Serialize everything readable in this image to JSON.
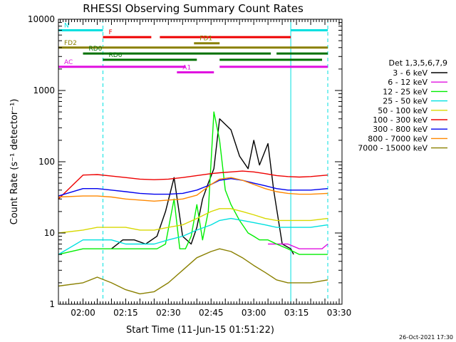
{
  "chart_data": {
    "type": "line",
    "title": "RHESSI Observing Summary Count Rates",
    "xlabel": "Start Time (11-Jun-15 01:51:22)",
    "ylabel": "Count Rate (s⁻¹ detector⁻¹)",
    "xlim": [
      "01:51:22",
      "03:31:00"
    ],
    "ylim": [
      1,
      10000
    ],
    "yscale": "log",
    "xticks": [
      "02:00",
      "02:15",
      "02:30",
      "02:45",
      "03:00",
      "03:15",
      "03:30"
    ],
    "yticks": [
      {
        "value": 1,
        "label": "1"
      },
      {
        "value": 10,
        "label": "10"
      },
      {
        "value": 100,
        "label": "100"
      },
      {
        "value": 1000,
        "label": "1000"
      },
      {
        "value": 10000,
        "label": "10000"
      }
    ],
    "legend_title": "Det 1,3,5,6,7,9",
    "legend_position": "right",
    "series": [
      {
        "name": "3 - 6 keV",
        "color": "#000000",
        "points": [
          [
            "01:51:22",
            0
          ],
          [
            "02:00",
            0
          ],
          [
            "02:05",
            0
          ],
          [
            "02:10",
            6
          ],
          [
            "02:14",
            8
          ],
          [
            "02:18",
            8
          ],
          [
            "02:22",
            7
          ],
          [
            "02:26",
            9
          ],
          [
            "02:29",
            20
          ],
          [
            "02:32",
            60
          ],
          [
            "02:35",
            9
          ],
          [
            "02:38",
            7
          ],
          [
            "02:40",
            12
          ],
          [
            "02:42",
            30
          ],
          [
            "02:44",
            50
          ],
          [
            "02:46",
            80
          ],
          [
            "02:48",
            400
          ],
          [
            "02:52",
            280
          ],
          [
            "02:55",
            120
          ],
          [
            "02:58",
            80
          ],
          [
            "03:00",
            200
          ],
          [
            "03:02",
            90
          ],
          [
            "03:05",
            180
          ],
          [
            "03:07",
            40
          ],
          [
            "03:10",
            7
          ],
          [
            "03:13",
            6
          ],
          [
            "03:14",
            5
          ],
          [
            "03:16",
            0
          ],
          [
            "03:26",
            0
          ]
        ]
      },
      {
        "name": "6 - 12 keV",
        "color": "#e010e0",
        "points": [
          [
            "03:05",
            7
          ],
          [
            "03:08",
            7
          ],
          [
            "03:12",
            7
          ],
          [
            "03:16",
            6
          ],
          [
            "03:20",
            6
          ],
          [
            "03:24",
            6
          ],
          [
            "03:26",
            7
          ]
        ]
      },
      {
        "name": "12 - 25 keV",
        "color": "#00ee00",
        "points": [
          [
            "01:51:22",
            5
          ],
          [
            "02:00",
            6
          ],
          [
            "02:05",
            6
          ],
          [
            "02:10",
            6
          ],
          [
            "02:14",
            6
          ],
          [
            "02:18",
            6
          ],
          [
            "02:22",
            6
          ],
          [
            "02:26",
            6
          ],
          [
            "02:29",
            7
          ],
          [
            "02:32",
            30
          ],
          [
            "02:34",
            6
          ],
          [
            "02:36",
            6
          ],
          [
            "02:38",
            9
          ],
          [
            "02:40",
            25
          ],
          [
            "02:42",
            8
          ],
          [
            "02:44",
            20
          ],
          [
            "02:46",
            500
          ],
          [
            "02:48",
            200
          ],
          [
            "02:50",
            40
          ],
          [
            "02:52",
            25
          ],
          [
            "02:55",
            15
          ],
          [
            "02:58",
            10
          ],
          [
            "03:00",
            9
          ],
          [
            "03:02",
            8
          ],
          [
            "03:05",
            8
          ],
          [
            "03:08",
            7
          ],
          [
            "03:12",
            6
          ],
          [
            "03:16",
            5
          ],
          [
            "03:20",
            5
          ],
          [
            "03:26",
            5
          ]
        ]
      },
      {
        "name": "25 - 50 keV",
        "color": "#00e0e0",
        "points": [
          [
            "01:51:22",
            5
          ],
          [
            "02:00",
            8
          ],
          [
            "02:05",
            8
          ],
          [
            "02:10",
            8
          ],
          [
            "02:15",
            7
          ],
          [
            "02:20",
            7
          ],
          [
            "02:25",
            7
          ],
          [
            "02:30",
            8
          ],
          [
            "02:35",
            9
          ],
          [
            "02:40",
            11
          ],
          [
            "02:45",
            13
          ],
          [
            "02:48",
            15
          ],
          [
            "02:52",
            16
          ],
          [
            "02:56",
            15
          ],
          [
            "03:00",
            14
          ],
          [
            "03:04",
            13
          ],
          [
            "03:08",
            12
          ],
          [
            "03:12",
            12
          ],
          [
            "03:16",
            12
          ],
          [
            "03:20",
            12
          ],
          [
            "03:26",
            13
          ]
        ]
      },
      {
        "name": "50 - 100 keV",
        "color": "#d8d800",
        "points": [
          [
            "01:51:22",
            10
          ],
          [
            "02:00",
            11
          ],
          [
            "02:05",
            12
          ],
          [
            "02:10",
            12
          ],
          [
            "02:15",
            12
          ],
          [
            "02:20",
            11
          ],
          [
            "02:25",
            11
          ],
          [
            "02:30",
            12
          ],
          [
            "02:35",
            13
          ],
          [
            "02:40",
            16
          ],
          [
            "02:45",
            20
          ],
          [
            "02:48",
            22
          ],
          [
            "02:52",
            22
          ],
          [
            "02:56",
            20
          ],
          [
            "03:00",
            18
          ],
          [
            "03:04",
            16
          ],
          [
            "03:08",
            15
          ],
          [
            "03:12",
            15
          ],
          [
            "03:16",
            15
          ],
          [
            "03:20",
            15
          ],
          [
            "03:26",
            16
          ]
        ]
      },
      {
        "name": "100 - 300 keV",
        "color": "#ee0000",
        "points": [
          [
            "01:51:22",
            30
          ],
          [
            "02:00",
            65
          ],
          [
            "02:05",
            66
          ],
          [
            "02:10",
            63
          ],
          [
            "02:15",
            60
          ],
          [
            "02:20",
            57
          ],
          [
            "02:25",
            56
          ],
          [
            "02:30",
            57
          ],
          [
            "02:35",
            60
          ],
          [
            "02:40",
            64
          ],
          [
            "02:45",
            68
          ],
          [
            "02:48",
            70
          ],
          [
            "02:52",
            72
          ],
          [
            "02:56",
            74
          ],
          [
            "03:00",
            72
          ],
          [
            "03:04",
            68
          ],
          [
            "03:08",
            64
          ],
          [
            "03:12",
            62
          ],
          [
            "03:16",
            61
          ],
          [
            "03:20",
            62
          ],
          [
            "03:26",
            65
          ]
        ]
      },
      {
        "name": "300 - 800 keV",
        "color": "#0000ee",
        "points": [
          [
            "01:51:22",
            33
          ],
          [
            "02:00",
            42
          ],
          [
            "02:05",
            42
          ],
          [
            "02:10",
            40
          ],
          [
            "02:15",
            38
          ],
          [
            "02:20",
            36
          ],
          [
            "02:25",
            35
          ],
          [
            "02:30",
            35
          ],
          [
            "02:35",
            36
          ],
          [
            "02:40",
            40
          ],
          [
            "02:45",
            48
          ],
          [
            "02:48",
            55
          ],
          [
            "02:52",
            58
          ],
          [
            "02:56",
            55
          ],
          [
            "03:00",
            50
          ],
          [
            "03:04",
            46
          ],
          [
            "03:08",
            42
          ],
          [
            "03:12",
            40
          ],
          [
            "03:16",
            40
          ],
          [
            "03:20",
            40
          ],
          [
            "03:26",
            42
          ]
        ]
      },
      {
        "name": "800 - 7000 keV",
        "color": "#ff8800",
        "points": [
          [
            "01:51:22",
            32
          ],
          [
            "02:00",
            33
          ],
          [
            "02:05",
            33
          ],
          [
            "02:10",
            32
          ],
          [
            "02:15",
            30
          ],
          [
            "02:20",
            29
          ],
          [
            "02:25",
            28
          ],
          [
            "02:30",
            29
          ],
          [
            "02:35",
            30
          ],
          [
            "02:40",
            34
          ],
          [
            "02:45",
            48
          ],
          [
            "02:48",
            57
          ],
          [
            "02:52",
            60
          ],
          [
            "02:56",
            55
          ],
          [
            "03:00",
            48
          ],
          [
            "03:04",
            42
          ],
          [
            "03:08",
            38
          ],
          [
            "03:12",
            36
          ],
          [
            "03:16",
            35
          ],
          [
            "03:20",
            35
          ],
          [
            "03:26",
            36
          ]
        ]
      },
      {
        "name": "7000 - 15000 keV",
        "color": "#8a8000",
        "points": [
          [
            "01:51:22",
            1.8
          ],
          [
            "02:00",
            2
          ],
          [
            "02:05",
            2.4
          ],
          [
            "02:10",
            2
          ],
          [
            "02:15",
            1.6
          ],
          [
            "02:20",
            1.4
          ],
          [
            "02:25",
            1.5
          ],
          [
            "02:30",
            2
          ],
          [
            "02:35",
            3
          ],
          [
            "02:40",
            4.5
          ],
          [
            "02:45",
            5.5
          ],
          [
            "02:48",
            6
          ],
          [
            "02:52",
            5.5
          ],
          [
            "02:56",
            4.5
          ],
          [
            "03:00",
            3.5
          ],
          [
            "03:04",
            2.8
          ],
          [
            "03:08",
            2.2
          ],
          [
            "03:12",
            2
          ],
          [
            "03:16",
            2
          ],
          [
            "03:20",
            2
          ],
          [
            "03:26",
            2.2
          ]
        ]
      }
    ],
    "flags": [
      {
        "label": "N",
        "color": "#00e0e0",
        "y": 7000,
        "segments": [
          [
            "01:51:22",
            "02:07"
          ],
          [
            "03:13",
            "03:26"
          ]
        ]
      },
      {
        "label": "F",
        "color": "#ee0000",
        "y": 5600,
        "segments": [
          [
            "02:07",
            "02:24"
          ],
          [
            "02:27",
            "03:13"
          ]
        ]
      },
      {
        "label": "FD1",
        "color": "#8a8000",
        "y": 4600,
        "segments": [
          [
            "02:39",
            "02:48"
          ]
        ]
      },
      {
        "label": "FD2",
        "color": "#8a8000",
        "y": 4000,
        "segments": [
          [
            "01:51:22",
            "03:26"
          ]
        ]
      },
      {
        "label": "RD0",
        "color": "#007000",
        "y": 3300,
        "segments": [
          [
            "02:00",
            "03:06"
          ],
          [
            "03:08",
            "03:26"
          ]
        ]
      },
      {
        "label": "RD6",
        "color": "#007000",
        "y": 2700,
        "segments": [
          [
            "02:07",
            "02:40"
          ],
          [
            "02:48",
            "03:24"
          ]
        ]
      },
      {
        "label": "AC",
        "color": "#e010e0",
        "y": 2150,
        "segments": [
          [
            "01:51:22",
            "02:36"
          ],
          [
            "02:48",
            "03:26"
          ]
        ]
      },
      {
        "label": "A1",
        "color": "#e010e0",
        "y": 1800,
        "segments": [
          [
            "02:33",
            "02:46"
          ]
        ]
      }
    ],
    "vlines": [
      {
        "x": "02:07",
        "color": "#00e0e0",
        "style": "dashed"
      },
      {
        "x": "03:13",
        "color": "#00e0e0",
        "style": "solid"
      },
      {
        "x": "03:26",
        "color": "#00e0e0",
        "style": "dashed"
      }
    ]
  },
  "footer": {
    "timestamp": "26-Oct-2021 17:30"
  }
}
